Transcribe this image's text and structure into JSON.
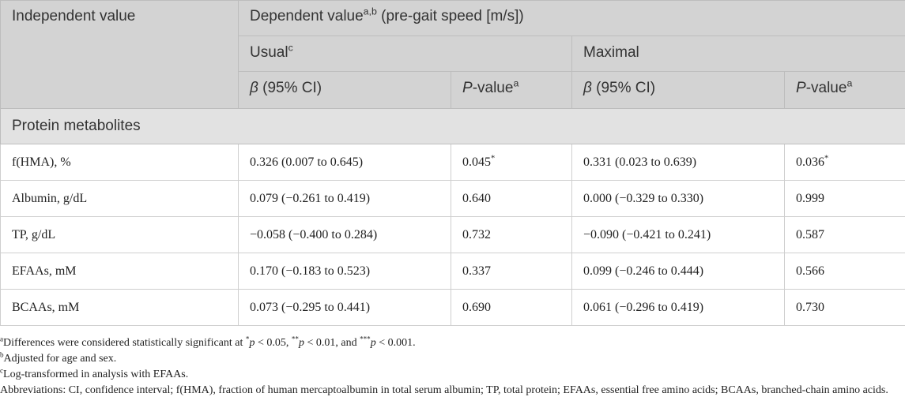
{
  "header": {
    "independent": "Independent value",
    "dependent_prefix": "Dependent value",
    "dependent_sup": "a,b",
    "dependent_suffix": " (pre-gait speed [m/s])",
    "usual": "Usual",
    "usual_sup": "c",
    "maximal": "Maximal",
    "beta_symbol": "β",
    "beta_rest": " (95% CI)",
    "p_italic": "P",
    "p_rest": "-value",
    "p_sup": "a"
  },
  "section": "Protein metabolites",
  "rows": [
    {
      "label": "f(HMA), %",
      "usual_beta": "0.326 (0.007 to 0.645)",
      "usual_p": "0.045",
      "usual_p_sup": "*",
      "max_beta": "0.331 (0.023 to 0.639)",
      "max_p": "0.036",
      "max_p_sup": "*"
    },
    {
      "label": "Albumin, g/dL",
      "usual_beta": "0.079 (−0.261 to 0.419)",
      "usual_p": "0.640",
      "usual_p_sup": "",
      "max_beta": "0.000 (−0.329 to 0.330)",
      "max_p": "0.999",
      "max_p_sup": ""
    },
    {
      "label": "TP, g/dL",
      "usual_beta": "−0.058 (−0.400 to 0.284)",
      "usual_p": "0.732",
      "usual_p_sup": "",
      "max_beta": "−0.090 (−0.421 to 0.241)",
      "max_p": "0.587",
      "max_p_sup": ""
    },
    {
      "label": "EFAAs, mM",
      "usual_beta": "0.170 (−0.183 to 0.523)",
      "usual_p": "0.337",
      "usual_p_sup": "",
      "max_beta": "0.099 (−0.246 to 0.444)",
      "max_p": "0.566",
      "max_p_sup": ""
    },
    {
      "label": "BCAAs, mM",
      "usual_beta": "0.073 (−0.295 to 0.441)",
      "usual_p": "0.690",
      "usual_p_sup": "",
      "max_beta": "0.061 (−0.296 to 0.419)",
      "max_p": "0.730",
      "max_p_sup": ""
    }
  ],
  "footnotes": {
    "a_sup": "a",
    "a_text_1": "Differences were considered statistically significant at ",
    "a_star1": "*",
    "a_p1": "p",
    "a_t1": " < 0.05, ",
    "a_star2": "**",
    "a_p2": "p",
    "a_t2": " < 0.01, and ",
    "a_star3": "***",
    "a_p3": "p",
    "a_t3": " < 0.001.",
    "b_sup": "b",
    "b_text": "Adjusted for age and sex.",
    "c_sup": "c",
    "c_text": "Log-transformed in analysis with EFAAs.",
    "abbreviations": "Abbreviations: CI, confidence interval; f(HMA), fraction of human mercaptoalbumin in total serum albumin; TP, total protein; EFAAs, essential free amino acids; BCAAs, branched-chain amino acids."
  }
}
